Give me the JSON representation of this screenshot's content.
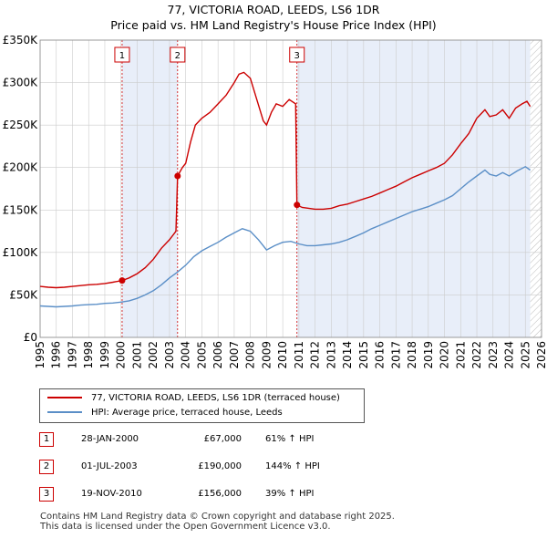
{
  "title_line1": "77, VICTORIA ROAD, LEEDS, LS6 1DR",
  "title_line2": "Price paid vs. HM Land Registry's House Price Index (HPI)",
  "legend": {
    "property_label": "77, VICTORIA ROAD, LEEDS, LS6 1DR (terraced house)",
    "hpi_label": "HPI: Average price, terraced house, Leeds"
  },
  "sales": [
    {
      "num": "1",
      "date": "28-JAN-2000",
      "price": "£67,000",
      "hpi": "61% ↑ HPI"
    },
    {
      "num": "2",
      "date": "01-JUL-2003",
      "price": "£190,000",
      "hpi": "144% ↑ HPI"
    },
    {
      "num": "3",
      "date": "19-NOV-2010",
      "price": "£156,000",
      "hpi": "39% ↑ HPI"
    }
  ],
  "footer_line1": "Contains HM Land Registry data © Crown copyright and database right 2025.",
  "footer_line2": "This data is licensed under the Open Government Licence v3.0.",
  "colors": {
    "property_line": "#cc0000",
    "hpi_line": "#5b8fc7",
    "shade": "#e8eef9",
    "grid": "#cccccc"
  },
  "chart_data": {
    "type": "line",
    "title": "77, VICTORIA ROAD, LEEDS, LS6 1DR",
    "subtitle": "Price paid vs. HM Land Registry's House Price Index (HPI)",
    "xlabel": "",
    "ylabel": "",
    "xlim": [
      1995,
      2026
    ],
    "ylim": [
      0,
      350000
    ],
    "x_ticks": [
      1995,
      1996,
      1997,
      1998,
      1999,
      2000,
      2001,
      2002,
      2003,
      2004,
      2005,
      2006,
      2007,
      2008,
      2009,
      2010,
      2011,
      2012,
      2013,
      2014,
      2015,
      2016,
      2017,
      2018,
      2019,
      2020,
      2021,
      2022,
      2023,
      2024,
      2025,
      2026
    ],
    "y_ticks": [
      {
        "value": 0,
        "label": "£0"
      },
      {
        "value": 50000,
        "label": "£50K"
      },
      {
        "value": 100000,
        "label": "£100K"
      },
      {
        "value": 150000,
        "label": "£150K"
      },
      {
        "value": 200000,
        "label": "£200K"
      },
      {
        "value": 250000,
        "label": "£250K"
      },
      {
        "value": 300000,
        "label": "£300K"
      },
      {
        "value": 350000,
        "label": "£350K"
      }
    ],
    "grid": true,
    "shaded_spans": [
      [
        2000.07,
        2003.5
      ],
      [
        2010.88,
        2025.3
      ]
    ],
    "hatched_after": 2025.3,
    "series": [
      {
        "name": "77, VICTORIA ROAD, LEEDS, LS6 1DR (terraced house)",
        "color": "#cc0000",
        "points": [
          [
            1995.0,
            60000
          ],
          [
            1995.5,
            59000
          ],
          [
            1996.0,
            58500
          ],
          [
            1996.5,
            59000
          ],
          [
            1997.0,
            60000
          ],
          [
            1997.5,
            61000
          ],
          [
            1998.0,
            62000
          ],
          [
            1998.5,
            62500
          ],
          [
            1999.0,
            63500
          ],
          [
            1999.5,
            65000
          ],
          [
            2000.07,
            67000
          ],
          [
            2000.5,
            70000
          ],
          [
            2001.0,
            75000
          ],
          [
            2001.5,
            82000
          ],
          [
            2002.0,
            92000
          ],
          [
            2002.5,
            105000
          ],
          [
            2003.0,
            115000
          ],
          [
            2003.4,
            125000
          ],
          [
            2003.5,
            190000
          ],
          [
            2003.8,
            200000
          ],
          [
            2004.0,
            205000
          ],
          [
            2004.3,
            230000
          ],
          [
            2004.6,
            250000
          ],
          [
            2005.0,
            258000
          ],
          [
            2005.5,
            265000
          ],
          [
            2006.0,
            275000
          ],
          [
            2006.5,
            285000
          ],
          [
            2007.0,
            300000
          ],
          [
            2007.3,
            310000
          ],
          [
            2007.6,
            312000
          ],
          [
            2008.0,
            305000
          ],
          [
            2008.4,
            280000
          ],
          [
            2008.8,
            255000
          ],
          [
            2009.0,
            250000
          ],
          [
            2009.3,
            265000
          ],
          [
            2009.6,
            275000
          ],
          [
            2010.0,
            272000
          ],
          [
            2010.4,
            280000
          ],
          [
            2010.8,
            275000
          ],
          [
            2010.88,
            156000
          ],
          [
            2011.2,
            153000
          ],
          [
            2011.6,
            152000
          ],
          [
            2012.0,
            151000
          ],
          [
            2012.5,
            151000
          ],
          [
            2013.0,
            152000
          ],
          [
            2013.5,
            155000
          ],
          [
            2014.0,
            157000
          ],
          [
            2014.5,
            160000
          ],
          [
            2015.0,
            163000
          ],
          [
            2015.5,
            166000
          ],
          [
            2016.0,
            170000
          ],
          [
            2016.5,
            174000
          ],
          [
            2017.0,
            178000
          ],
          [
            2017.5,
            183000
          ],
          [
            2018.0,
            188000
          ],
          [
            2018.5,
            192000
          ],
          [
            2019.0,
            196000
          ],
          [
            2019.5,
            200000
          ],
          [
            2020.0,
            205000
          ],
          [
            2020.5,
            215000
          ],
          [
            2021.0,
            228000
          ],
          [
            2021.5,
            240000
          ],
          [
            2022.0,
            258000
          ],
          [
            2022.5,
            268000
          ],
          [
            2022.8,
            260000
          ],
          [
            2023.2,
            262000
          ],
          [
            2023.6,
            268000
          ],
          [
            2024.0,
            258000
          ],
          [
            2024.4,
            270000
          ],
          [
            2024.8,
            275000
          ],
          [
            2025.1,
            278000
          ],
          [
            2025.3,
            272000
          ]
        ]
      },
      {
        "name": "HPI: Average price, terraced house, Leeds",
        "color": "#5b8fc7",
        "points": [
          [
            1995.0,
            37000
          ],
          [
            1995.5,
            36500
          ],
          [
            1996.0,
            36000
          ],
          [
            1996.5,
            36500
          ],
          [
            1997.0,
            37000
          ],
          [
            1997.5,
            38000
          ],
          [
            1998.0,
            38500
          ],
          [
            1998.5,
            39000
          ],
          [
            1999.0,
            40000
          ],
          [
            1999.5,
            40500
          ],
          [
            2000.0,
            41500
          ],
          [
            2000.5,
            43000
          ],
          [
            2001.0,
            46000
          ],
          [
            2001.5,
            50000
          ],
          [
            2002.0,
            55000
          ],
          [
            2002.5,
            62000
          ],
          [
            2003.0,
            70000
          ],
          [
            2003.5,
            77000
          ],
          [
            2004.0,
            85000
          ],
          [
            2004.5,
            95000
          ],
          [
            2005.0,
            102000
          ],
          [
            2005.5,
            107000
          ],
          [
            2006.0,
            112000
          ],
          [
            2006.5,
            118000
          ],
          [
            2007.0,
            123000
          ],
          [
            2007.5,
            128000
          ],
          [
            2008.0,
            125000
          ],
          [
            2008.5,
            115000
          ],
          [
            2009.0,
            103000
          ],
          [
            2009.5,
            108000
          ],
          [
            2010.0,
            112000
          ],
          [
            2010.5,
            113000
          ],
          [
            2011.0,
            110000
          ],
          [
            2011.5,
            108000
          ],
          [
            2012.0,
            108000
          ],
          [
            2012.5,
            109000
          ],
          [
            2013.0,
            110000
          ],
          [
            2013.5,
            112000
          ],
          [
            2014.0,
            115000
          ],
          [
            2014.5,
            119000
          ],
          [
            2015.0,
            123000
          ],
          [
            2015.5,
            128000
          ],
          [
            2016.0,
            132000
          ],
          [
            2016.5,
            136000
          ],
          [
            2017.0,
            140000
          ],
          [
            2017.5,
            144000
          ],
          [
            2018.0,
            148000
          ],
          [
            2018.5,
            151000
          ],
          [
            2019.0,
            154000
          ],
          [
            2019.5,
            158000
          ],
          [
            2020.0,
            162000
          ],
          [
            2020.5,
            167000
          ],
          [
            2021.0,
            175000
          ],
          [
            2021.5,
            183000
          ],
          [
            2022.0,
            190000
          ],
          [
            2022.5,
            197000
          ],
          [
            2022.8,
            192000
          ],
          [
            2023.2,
            190000
          ],
          [
            2023.6,
            194000
          ],
          [
            2024.0,
            190000
          ],
          [
            2024.5,
            196000
          ],
          [
            2025.0,
            201000
          ],
          [
            2025.3,
            197000
          ]
        ]
      }
    ],
    "markers": [
      {
        "num": "1",
        "x": 2000.07,
        "y": 67000
      },
      {
        "num": "2",
        "x": 2003.5,
        "y": 190000
      },
      {
        "num": "3",
        "x": 2010.88,
        "y": 156000
      }
    ]
  }
}
